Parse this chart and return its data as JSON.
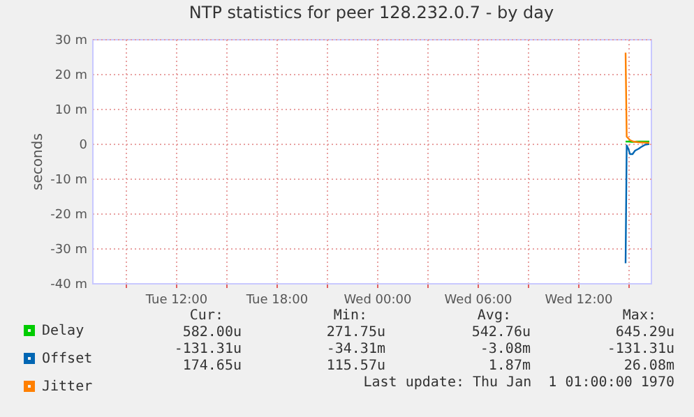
{
  "chart_data": {
    "type": "line",
    "title": "NTP statistics for peer 128.232.0.7 - by day",
    "ylabel": "seconds",
    "xlim": [
      "--12-30T07:00",
      "--12-31T16:20"
    ],
    "xticks": [
      {
        "value": "--12-30T09:00",
        "label": null
      },
      {
        "value": "--12-30T12:00",
        "label": "Tue 12:00"
      },
      {
        "value": "--12-30T15:00",
        "label": null
      },
      {
        "value": "--12-30T18:00",
        "label": "Tue 18:00"
      },
      {
        "value": "--12-30T21:00",
        "label": null
      },
      {
        "value": "--12-31T00:00",
        "label": "Wed 00:00"
      },
      {
        "value": "--12-31T03:00",
        "label": null
      },
      {
        "value": "--12-31T06:00",
        "label": "Wed 06:00"
      },
      {
        "value": "--12-31T09:00",
        "label": null
      },
      {
        "value": "--12-31T12:00",
        "label": "Wed 12:00"
      },
      {
        "value": "--12-31T15:00",
        "label": null
      }
    ],
    "ylim": [
      -40,
      30
    ],
    "yticks": [
      {
        "value": -40,
        "label": "-40 m"
      },
      {
        "value": -30,
        "label": "-30 m"
      },
      {
        "value": -20,
        "label": "-20 m"
      },
      {
        "value": -10,
        "label": "-10 m"
      },
      0,
      {
        "value": 10,
        "label": "10 m"
      },
      {
        "value": 20,
        "label": "20 m"
      },
      {
        "value": 30,
        "label": "30 m"
      }
    ],
    "grid": true,
    "legend": "bottom left",
    "series": [
      {
        "name": "Delay",
        "color": "#00cc00",
        "x": [
          "--12-31T14:50",
          "--12-31T15:00",
          "--12-31T15:15",
          "--12-31T15:30",
          "--12-31T15:45",
          "--12-31T16:00",
          "--12-31T16:15"
        ],
        "values": [
          0.6,
          0.6,
          0.5,
          0.6,
          0.6,
          0.6,
          0.6
        ]
      },
      {
        "name": "Offset",
        "color": "#0066b3",
        "x": [
          "--12-31T14:50",
          "--12-31T14:54",
          "--12-31T15:00",
          "--12-31T15:06",
          "--12-31T15:15",
          "--12-31T15:24",
          "--12-31T15:36",
          "--12-31T15:45",
          "--12-31T16:00",
          "--12-31T16:15"
        ],
        "values": [
          -34.3,
          -0.5,
          -1.5,
          -3,
          -3,
          -2,
          -1.5,
          -1,
          -0.3,
          -0.1
        ]
      },
      {
        "name": "Jitter",
        "color": "#ff8000",
        "x": [
          "--12-31T14:50",
          "--12-31T14:54",
          "--12-31T15:00",
          "--12-31T15:06",
          "--12-31T15:18",
          "--12-31T15:36",
          "--12-31T16:00",
          "--12-31T16:15"
        ],
        "values": [
          26.1,
          2,
          1.5,
          1,
          0.6,
          0.4,
          0.3,
          0.2
        ]
      }
    ],
    "annotations": [
      "Cur:",
      "Min:",
      "Avg:",
      "Max:",
      "582.00u",
      "271.75u",
      "542.76u",
      "645.29u",
      "-131.31u",
      "-34.31m",
      "-3.08m",
      "-131.31u",
      "174.65u",
      "115.57u",
      "1.87m",
      "26.08m",
      "Last update: Thu Jan  1 01:00:00 1970"
    ]
  }
}
